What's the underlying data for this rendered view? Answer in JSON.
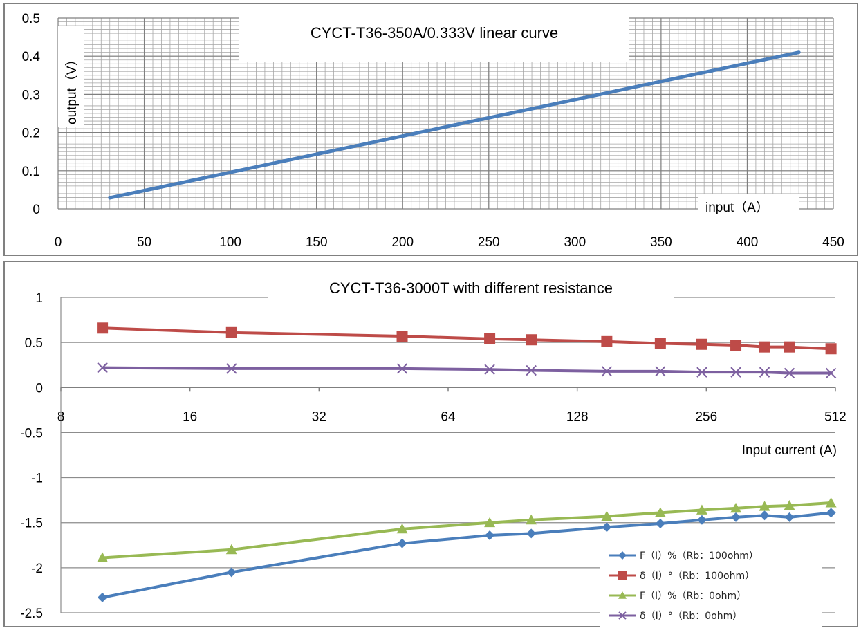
{
  "chart_data": [
    {
      "type": "line",
      "title": "CYCT-T36-350A/0.333V linear curve",
      "xlabel": "input（A）",
      "ylabel": "output（V）",
      "xlim": [
        0,
        450
      ],
      "ylim": [
        0,
        0.5
      ],
      "x_ticks": [
        "0",
        "50",
        "100",
        "150",
        "200",
        "250",
        "300",
        "350",
        "400",
        "450"
      ],
      "y_ticks": [
        "0",
        "0.1",
        "0.2",
        "0.3",
        "0.4",
        "0.5"
      ],
      "grid": true,
      "colors": {
        "line": "#4a7ebb",
        "grid": "#a6a6a6"
      },
      "series": [
        {
          "x": [
            30,
            430
          ],
          "y": [
            0.029,
            0.41
          ]
        }
      ]
    },
    {
      "type": "line",
      "title": "CYCT-T36-3000T with different resistance",
      "xlabel": "Input current (A)",
      "ylabel": "",
      "x_scale": "log2",
      "xlim": [
        8,
        512
      ],
      "ylim": [
        -2.5,
        1
      ],
      "x_ticks": [
        "8",
        "16",
        "32",
        "64",
        "128",
        "256",
        "512"
      ],
      "y_ticks": [
        "1",
        "0.5",
        "0",
        "-0.5",
        "-1",
        "-1.5",
        "-2",
        "-2.5"
      ],
      "grid": true,
      "legend_position": "bottom-right",
      "x": [
        10,
        20,
        50,
        80,
        100,
        150,
        200,
        250,
        300,
        350,
        400,
        500
      ],
      "series": [
        {
          "name": "F（I）%（Rb：100ohm）",
          "color": "#4a7ebb",
          "marker": "diamond",
          "values": [
            -2.33,
            -2.05,
            -1.73,
            -1.64,
            -1.62,
            -1.55,
            -1.51,
            -1.47,
            -1.44,
            -1.42,
            -1.44,
            -1.39
          ]
        },
        {
          "name": "δ（I）°（Rb：100ohm）",
          "color": "#be4b48",
          "marker": "square",
          "values": [
            0.66,
            0.61,
            0.57,
            0.54,
            0.53,
            0.51,
            0.49,
            0.48,
            0.47,
            0.45,
            0.45,
            0.43
          ]
        },
        {
          "name": "F（I）%（Rb：0ohm）",
          "color": "#98b954",
          "marker": "triangle",
          "values": [
            -1.89,
            -1.8,
            -1.57,
            -1.5,
            -1.47,
            -1.43,
            -1.39,
            -1.36,
            -1.34,
            -1.32,
            -1.31,
            -1.28
          ]
        },
        {
          "name": "δ（I）°（Rb：0ohm）",
          "color": "#7d60a0",
          "marker": "x",
          "values": [
            0.22,
            0.21,
            0.21,
            0.2,
            0.19,
            0.18,
            0.18,
            0.17,
            0.17,
            0.17,
            0.16,
            0.16
          ]
        }
      ]
    }
  ]
}
